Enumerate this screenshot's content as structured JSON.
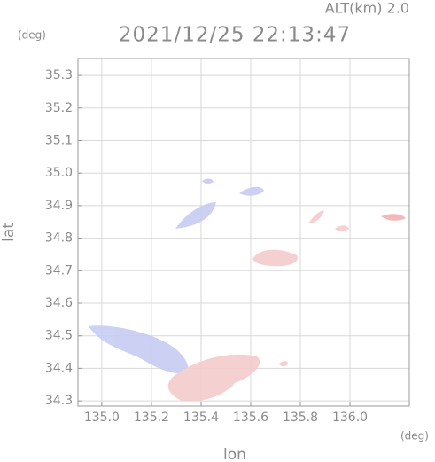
{
  "chart_data": {
    "type": "radar",
    "title": "2021/12/25 22:13:47",
    "annotation": "ALT(km) 2.0",
    "xlabel": "lon",
    "ylabel": "lat",
    "x_unit": "(deg)",
    "y_unit": "(deg)",
    "xlim": [
      134.904,
      136.239
    ],
    "ylim": [
      34.284,
      35.352
    ],
    "xticks": [
      {
        "value": 135,
        "label": "135.0"
      },
      135.2,
      135.4,
      135.6,
      135.8,
      {
        "value": 136,
        "label": "136.0"
      }
    ],
    "yticks": [
      34.3,
      34.4,
      34.5,
      34.6,
      34.7,
      34.8,
      34.9,
      {
        "value": 35,
        "label": "35.0"
      },
      35.1,
      35.2,
      35.3
    ],
    "grid": true
  }
}
